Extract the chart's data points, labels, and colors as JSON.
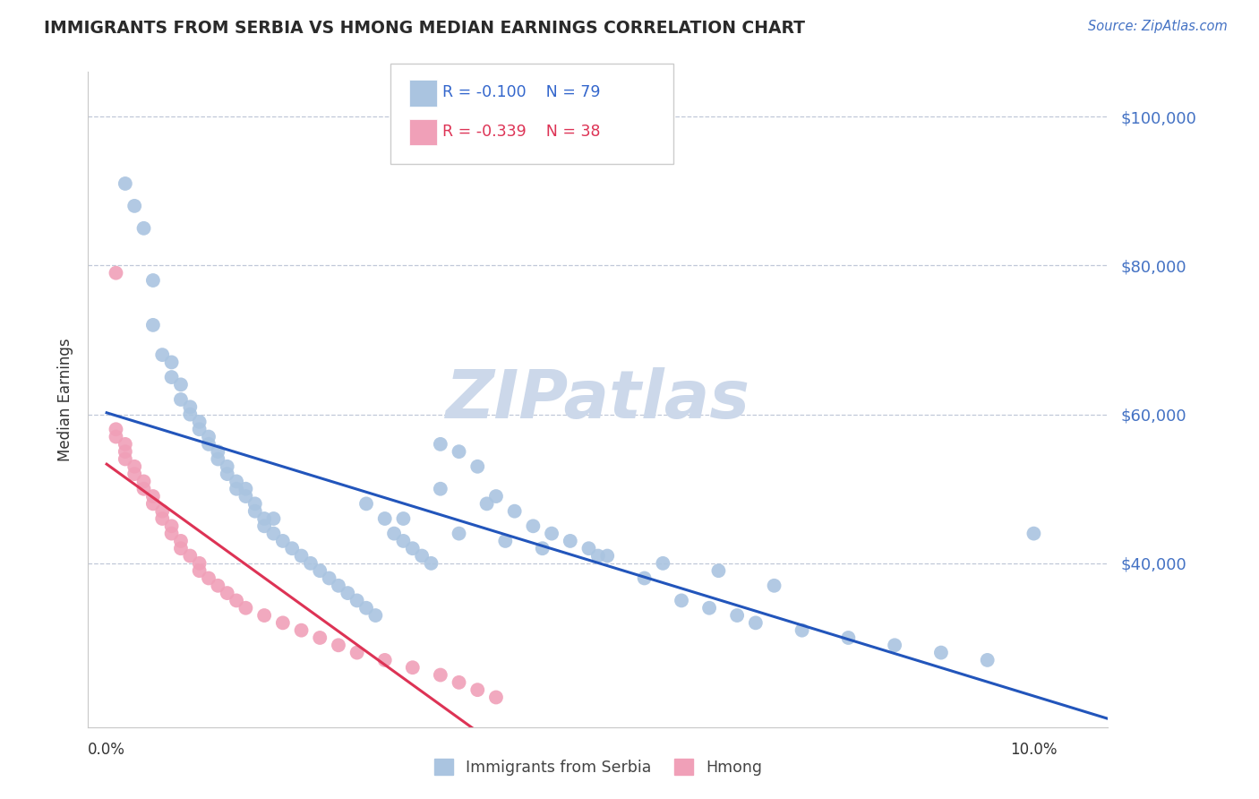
{
  "title": "IMMIGRANTS FROM SERBIA VS HMONG MEDIAN EARNINGS CORRELATION CHART",
  "source": "Source: ZipAtlas.com",
  "ylabel": "Median Earnings",
  "ytick_labels": [
    "$40,000",
    "$60,000",
    "$80,000",
    "$100,000"
  ],
  "ytick_values": [
    40000,
    60000,
    80000,
    100000
  ],
  "ymin": 18000,
  "ymax": 106000,
  "xmin": -0.002,
  "xmax": 0.108,
  "legend_r1": "R = -0.100",
  "legend_n1": "N = 79",
  "legend_r2": "R = -0.339",
  "legend_n2": "N = 38",
  "serbia_color": "#aac4e0",
  "serbia_line_color": "#2255bb",
  "hmong_color": "#f0a0b8",
  "hmong_line_color": "#dd3355",
  "watermark": "ZIPatlas",
  "watermark_color": "#ccd8ea",
  "serbia_x": [
    0.002,
    0.003,
    0.004,
    0.005,
    0.005,
    0.006,
    0.007,
    0.007,
    0.008,
    0.008,
    0.009,
    0.009,
    0.01,
    0.01,
    0.011,
    0.011,
    0.012,
    0.012,
    0.013,
    0.013,
    0.014,
    0.014,
    0.015,
    0.015,
    0.016,
    0.016,
    0.017,
    0.017,
    0.018,
    0.018,
    0.019,
    0.02,
    0.021,
    0.022,
    0.023,
    0.024,
    0.025,
    0.026,
    0.027,
    0.028,
    0.029,
    0.03,
    0.031,
    0.032,
    0.033,
    0.034,
    0.035,
    0.036,
    0.038,
    0.04,
    0.042,
    0.044,
    0.046,
    0.048,
    0.05,
    0.052,
    0.054,
    0.058,
    0.062,
    0.065,
    0.068,
    0.07,
    0.075,
    0.08,
    0.085,
    0.09,
    0.095,
    0.1,
    0.028,
    0.032,
    0.038,
    0.043,
    0.047,
    0.053,
    0.06,
    0.066,
    0.072,
    0.036,
    0.041
  ],
  "serbia_y": [
    91000,
    88000,
    85000,
    72000,
    78000,
    68000,
    65000,
    67000,
    62000,
    64000,
    60000,
    61000,
    59000,
    58000,
    57000,
    56000,
    55000,
    54000,
    53000,
    52000,
    51000,
    50000,
    50000,
    49000,
    48000,
    47000,
    46000,
    45000,
    44000,
    46000,
    43000,
    42000,
    41000,
    40000,
    39000,
    38000,
    37000,
    36000,
    35000,
    34000,
    33000,
    46000,
    44000,
    43000,
    42000,
    41000,
    40000,
    56000,
    55000,
    53000,
    49000,
    47000,
    45000,
    44000,
    43000,
    42000,
    41000,
    38000,
    35000,
    34000,
    33000,
    32000,
    31000,
    30000,
    29000,
    28000,
    27000,
    44000,
    48000,
    46000,
    44000,
    43000,
    42000,
    41000,
    40000,
    39000,
    37000,
    50000,
    48000
  ],
  "hmong_x": [
    0.001,
    0.001,
    0.001,
    0.002,
    0.002,
    0.002,
    0.003,
    0.003,
    0.004,
    0.004,
    0.005,
    0.005,
    0.006,
    0.006,
    0.007,
    0.007,
    0.008,
    0.008,
    0.009,
    0.01,
    0.01,
    0.011,
    0.012,
    0.013,
    0.014,
    0.015,
    0.017,
    0.019,
    0.021,
    0.023,
    0.025,
    0.027,
    0.03,
    0.033,
    0.036,
    0.038,
    0.04,
    0.042
  ],
  "hmong_y": [
    79000,
    58000,
    57000,
    56000,
    55000,
    54000,
    53000,
    52000,
    51000,
    50000,
    49000,
    48000,
    47000,
    46000,
    45000,
    44000,
    43000,
    42000,
    41000,
    40000,
    39000,
    38000,
    37000,
    36000,
    35000,
    34000,
    33000,
    32000,
    31000,
    30000,
    29000,
    28000,
    27000,
    26000,
    25000,
    24000,
    23000,
    22000
  ]
}
